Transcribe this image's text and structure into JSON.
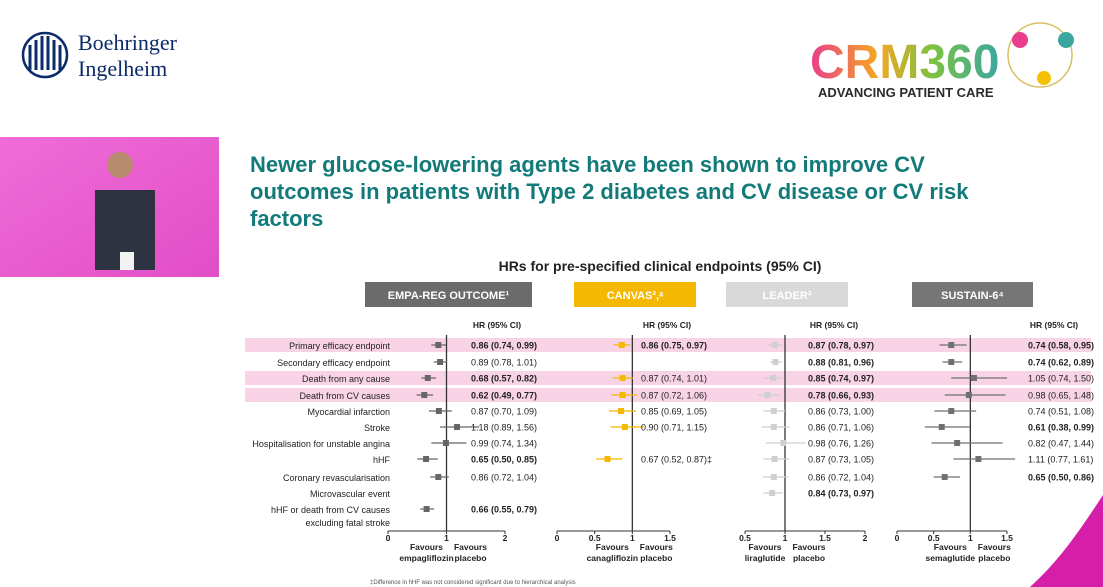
{
  "header": {
    "logo_line1": "Boehringer",
    "logo_line2": "Ingelheim",
    "event_logo": "CRM360",
    "event_tagline": "ADVANCING PATIENT CARE",
    "title_lines": [
      "Newer glucose-lowering agents have been shown to improve CV",
      "outcomes in patients with Type 2 diabetes and CV disease or CV risk",
      "factors"
    ],
    "subtitle": "HRs for pre-specified clinical endpoints (95% CI)",
    "footnote": "‡Difference in hHF was not considered significant due to hierarchical analysis"
  },
  "endpoints": [
    "Primary efficacy endpoint",
    "Secondary efficacy endpoint",
    "Death from any cause",
    "Death from CV causes",
    "Myocardial infarction",
    "Stroke",
    "Hospitalisation for unstable angina",
    "hHF",
    "Coronary revascularisation",
    "Microvascular event",
    [
      "hHF or death from CV causes",
      "excluding fatal stroke"
    ]
  ],
  "highlight_rows": [
    0,
    2,
    3
  ],
  "chart_data": [
    {
      "type": "forest",
      "title": "EMPA-REG OUTCOME¹",
      "header_color": "#6b6b6b",
      "color": "#666666",
      "ci_header": "HR (95% CI)",
      "values": [
        0.86,
        0.89,
        0.68,
        0.62,
        0.87,
        1.18,
        0.99,
        0.65,
        0.86,
        null,
        0.66
      ],
      "lower": [
        0.74,
        0.78,
        0.57,
        0.49,
        0.7,
        0.89,
        0.74,
        0.5,
        0.72,
        null,
        0.55
      ],
      "upper": [
        0.99,
        1.01,
        0.82,
        0.77,
        1.09,
        1.56,
        1.34,
        0.85,
        1.04,
        null,
        0.79
      ],
      "value_labels": [
        "0.86 (0.74, 0.99)",
        "0.89 (0.78, 1.01)",
        "0.68 (0.57, 0.82)",
        "0.62 (0.49, 0.77)",
        "0.87 (0.70, 1.09)",
        "1.18 (0.89, 1.56)",
        "0.99 (0.74, 1.34)",
        "0.65 (0.50, 0.85)",
        "0.86 (0.72, 1.04)",
        null,
        "0.66 (0.55, 0.79)"
      ],
      "significant": [
        true,
        false,
        true,
        true,
        false,
        false,
        false,
        true,
        false,
        false,
        true
      ],
      "xlim": [
        0,
        2
      ],
      "xticks": [
        0,
        1,
        2
      ],
      "reference": 1,
      "favours_left": [
        "Favours",
        "empagliflozin"
      ],
      "favours_right": [
        "Favours",
        "placebo"
      ]
    },
    {
      "type": "forest",
      "title": "CANVAS²,ᵃ",
      "header_color": "#f5b800",
      "color": "#f5b800",
      "ci_header": "HR (95% CI)",
      "values": [
        0.86,
        null,
        0.87,
        0.87,
        0.85,
        0.9,
        null,
        0.67,
        null,
        null,
        null
      ],
      "lower": [
        0.75,
        null,
        0.74,
        0.72,
        0.69,
        0.71,
        null,
        0.52,
        null,
        null,
        null
      ],
      "upper": [
        0.97,
        null,
        1.01,
        1.06,
        1.05,
        1.15,
        null,
        0.87,
        null,
        null,
        null
      ],
      "value_labels": [
        "0.86 (0.75, 0.97)",
        null,
        "0.87 (0.74, 1.01)",
        "0.87 (0.72, 1.06)",
        "0.85 (0.69, 1.05)",
        "0.90 (0.71, 1.15)",
        null,
        "0.67 (0.52, 0.87)‡",
        null,
        null,
        null
      ],
      "significant": [
        true,
        false,
        false,
        false,
        false,
        false,
        false,
        false,
        false,
        false,
        false
      ],
      "xlim": [
        0,
        1.5
      ],
      "xticks": [
        0,
        0.5,
        1,
        1.5
      ],
      "reference": 1,
      "favours_left": [
        "Favours",
        "canagliflozin"
      ],
      "favours_right": [
        "Favours",
        "placebo"
      ]
    },
    {
      "type": "forest",
      "title": "LEADER³",
      "header_color": "#d9d9d9",
      "color": "#cfcfcf",
      "ci_header": "HR (95% CI)",
      "values": [
        0.87,
        0.88,
        0.85,
        0.78,
        0.86,
        0.86,
        0.98,
        0.87,
        0.86,
        0.84,
        null
      ],
      "lower": [
        0.78,
        0.81,
        0.74,
        0.66,
        0.73,
        0.71,
        0.76,
        0.73,
        0.72,
        0.73,
        null
      ],
      "upper": [
        0.97,
        0.96,
        0.97,
        0.93,
        1.0,
        1.06,
        1.26,
        1.05,
        1.04,
        0.97,
        null
      ],
      "value_labels": [
        "0.87 (0.78, 0.97)",
        "0.88 (0.81, 0.96)",
        "0.85 (0.74, 0.97)",
        "0.78 (0.66, 0.93)",
        "0.86 (0.73, 1.00)",
        "0.86 (0.71, 1.06)",
        "0.98 (0.76, 1.26)",
        "0.87 (0.73, 1.05)",
        "0.86 (0.72, 1.04)",
        "0.84 (0.73, 0.97)",
        null
      ],
      "significant": [
        true,
        true,
        true,
        true,
        false,
        false,
        false,
        false,
        false,
        true,
        false
      ],
      "xlim": [
        0.5,
        2
      ],
      "xticks": [
        0.5,
        1,
        1.5,
        2
      ],
      "reference": 1,
      "favours_left": [
        "Favours",
        "liraglutide"
      ],
      "favours_right": [
        "Favours",
        "placebo"
      ]
    },
    {
      "type": "forest",
      "title": "SUSTAIN-6⁴",
      "header_color": "#767676",
      "color": "#707070",
      "ci_header": "HR (95% CI)",
      "values": [
        0.74,
        0.74,
        1.05,
        0.98,
        0.74,
        0.61,
        0.82,
        1.11,
        0.65,
        null,
        null
      ],
      "lower": [
        0.58,
        0.62,
        0.74,
        0.65,
        0.51,
        0.38,
        0.47,
        0.77,
        0.5,
        null,
        null
      ],
      "upper": [
        0.95,
        0.89,
        1.5,
        1.48,
        1.08,
        0.99,
        1.44,
        1.61,
        0.86,
        null,
        null
      ],
      "value_labels": [
        "0.74 (0.58, 0.95)",
        "0.74 (0.62, 0.89)",
        "1.05 (0.74, 1.50)",
        "0.98 (0.65, 1.48)",
        "0.74 (0.51, 1.08)",
        "0.61 (0.38, 0.99)",
        "0.82 (0.47, 1.44)",
        "1.11 (0.77, 1.61)",
        "0.65 (0.50, 0.86)",
        null,
        null
      ],
      "significant": [
        true,
        true,
        false,
        false,
        false,
        true,
        false,
        false,
        true,
        false,
        false
      ],
      "xlim": [
        0,
        1.5
      ],
      "xticks": [
        0,
        0.5,
        1,
        1.5
      ],
      "reference": 1,
      "favours_left": [
        "Favours",
        "semaglutide"
      ],
      "favours_right": [
        "Favours",
        "placebo"
      ]
    }
  ]
}
